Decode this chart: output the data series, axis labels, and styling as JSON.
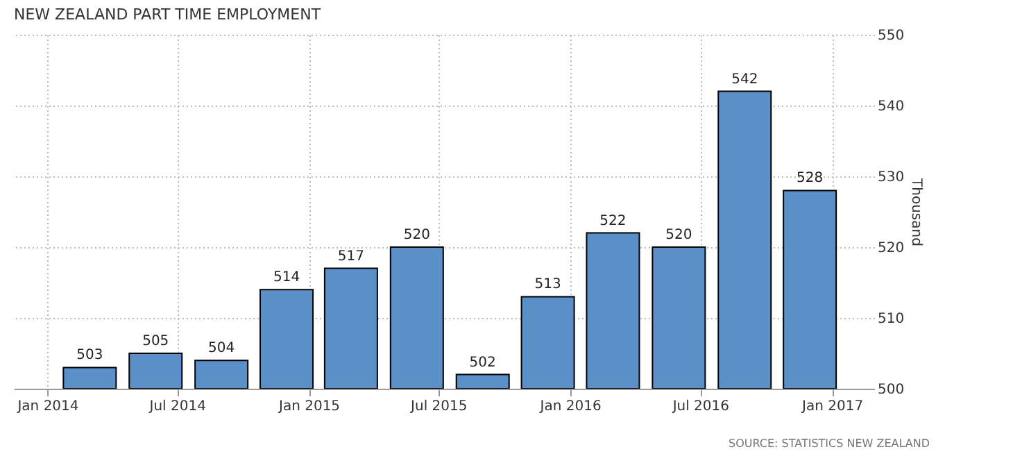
{
  "chart_data": {
    "type": "bar",
    "title": "NEW ZEALAND PART TIME EMPLOYMENT",
    "x": [
      "2014-03",
      "2014-06",
      "2014-09",
      "2014-12",
      "2015-03",
      "2015-06",
      "2015-09",
      "2015-12",
      "2016-03",
      "2016-06",
      "2016-09",
      "2016-12"
    ],
    "values": [
      503,
      505,
      504,
      514,
      517,
      520,
      502,
      513,
      522,
      520,
      542,
      528
    ],
    "color": "#5b8fc7",
    "xlim": [
      "2013-11-15",
      "2017-03-01"
    ],
    "xticks": [
      {
        "value": "2014-01",
        "label": "Jan 2014"
      },
      {
        "value": "2014-07",
        "label": "Jul 2014"
      },
      {
        "value": "2015-01",
        "label": "Jan 2015"
      },
      {
        "value": "2015-07",
        "label": "Jul 2015"
      },
      {
        "value": "2016-01",
        "label": "Jan 2016"
      },
      {
        "value": "2016-07",
        "label": "Jul 2016"
      },
      {
        "value": "2017-01",
        "label": "Jan 2017"
      }
    ],
    "ylim": [
      500,
      550
    ],
    "yticks": [
      500,
      510,
      520,
      530,
      540,
      550
    ],
    "ylabel": "Thousand",
    "grid": true,
    "data_labels": true,
    "annotations": [
      "SOURCE: STATISTICS NEW ZEALAND"
    ]
  }
}
